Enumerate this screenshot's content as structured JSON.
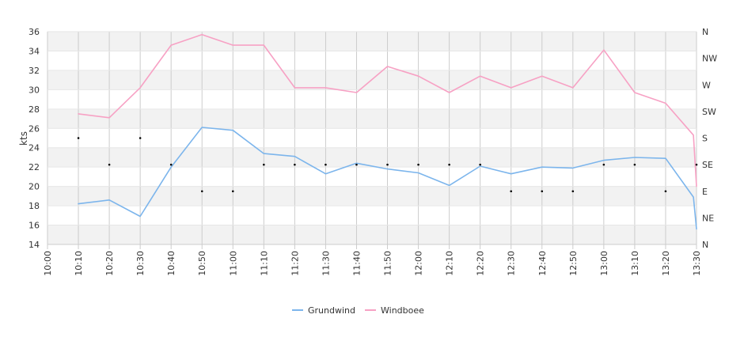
{
  "chart_data": {
    "type": "line",
    "ylabel": "kts",
    "ylim": [
      14,
      36
    ],
    "y_ticks": [
      14,
      16,
      18,
      20,
      22,
      24,
      26,
      28,
      30,
      32,
      34,
      36
    ],
    "x_ticks": [
      "10:00",
      "10:10",
      "10:20",
      "10:30",
      "10:40",
      "10:50",
      "11:00",
      "11:10",
      "11:20",
      "11:30",
      "11:40",
      "11:50",
      "12:00",
      "12:10",
      "12:20",
      "12:30",
      "12:40",
      "12:50",
      "13:00",
      "13:10",
      "13:20",
      "13:30"
    ],
    "right_axis": {
      "labels": [
        "N",
        "NE",
        "E",
        "SE",
        "S",
        "SW",
        "W",
        "NW",
        "N"
      ]
    },
    "grid": true,
    "band_colors": [
      "#f2f2f2",
      "#ffffff"
    ],
    "legend_position": "bottom",
    "series": [
      {
        "name": "Grundwind",
        "color": "#7cb5ec",
        "points": [
          [
            "10:10",
            18.2
          ],
          [
            "10:20",
            18.6
          ],
          [
            "10:30",
            16.9
          ],
          [
            "10:40",
            22.0
          ],
          [
            "10:50",
            26.1
          ],
          [
            "11:00",
            25.8
          ],
          [
            "11:10",
            23.4
          ],
          [
            "11:20",
            23.1
          ],
          [
            "11:30",
            21.3
          ],
          [
            "11:40",
            22.4
          ],
          [
            "11:50",
            21.8
          ],
          [
            "12:00",
            21.4
          ],
          [
            "12:10",
            20.1
          ],
          [
            "12:20",
            22.1
          ],
          [
            "12:30",
            21.3
          ],
          [
            "12:40",
            22.0
          ],
          [
            "12:50",
            21.9
          ],
          [
            "13:00",
            22.7
          ],
          [
            "13:10",
            23.0
          ],
          [
            "13:20",
            22.9
          ],
          [
            "13:29",
            18.9
          ],
          [
            "13:30",
            15.6
          ]
        ]
      },
      {
        "name": "Windboee",
        "color": "#f7a1c4",
        "points": [
          [
            "10:10",
            27.5
          ],
          [
            "10:20",
            27.1
          ],
          [
            "10:30",
            30.2
          ],
          [
            "10:40",
            34.6
          ],
          [
            "10:50",
            35.7
          ],
          [
            "11:00",
            34.6
          ],
          [
            "11:10",
            34.6
          ],
          [
            "11:20",
            30.2
          ],
          [
            "11:30",
            30.2
          ],
          [
            "11:40",
            29.7
          ],
          [
            "11:50",
            32.4
          ],
          [
            "12:00",
            31.4
          ],
          [
            "12:10",
            29.7
          ],
          [
            "12:20",
            31.4
          ],
          [
            "12:30",
            30.2
          ],
          [
            "12:40",
            31.4
          ],
          [
            "12:50",
            30.2
          ],
          [
            "13:00",
            34.1
          ],
          [
            "13:10",
            29.7
          ],
          [
            "13:20",
            28.6
          ],
          [
            "13:29",
            25.3
          ],
          [
            "13:30",
            20.0
          ]
        ]
      }
    ],
    "direction_markers": [
      [
        "10:10",
        "S"
      ],
      [
        "10:20",
        "SE"
      ],
      [
        "10:30",
        "S"
      ],
      [
        "10:40",
        "SE"
      ],
      [
        "10:50",
        "E"
      ],
      [
        "11:00",
        "E"
      ],
      [
        "11:10",
        "SE"
      ],
      [
        "11:20",
        "SE"
      ],
      [
        "11:30",
        "SE"
      ],
      [
        "11:40",
        "SE"
      ],
      [
        "11:50",
        "SE"
      ],
      [
        "12:00",
        "SE"
      ],
      [
        "12:10",
        "SE"
      ],
      [
        "12:20",
        "SE"
      ],
      [
        "12:30",
        "E"
      ],
      [
        "12:40",
        "E"
      ],
      [
        "12:50",
        "E"
      ],
      [
        "13:00",
        "SE"
      ],
      [
        "13:10",
        "SE"
      ],
      [
        "13:20",
        "E"
      ],
      [
        "13:30",
        "SE"
      ]
    ]
  }
}
